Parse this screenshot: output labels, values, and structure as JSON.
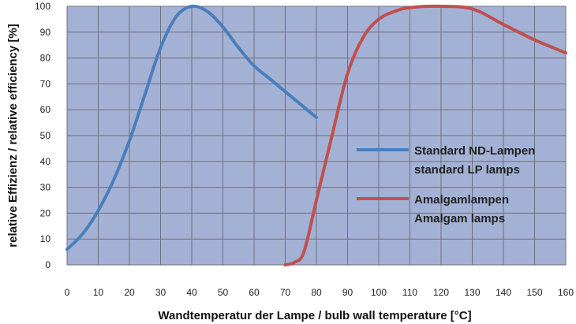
{
  "chart_data": {
    "type": "line",
    "xlabel": "Wandtemperatur der Lampe / bulb wall temperature [°C]",
    "ylabel": "relative Effizienz / relative efficiency [%]",
    "xlim": [
      0,
      160
    ],
    "ylim": [
      0,
      100
    ],
    "xticks": [
      0,
      10,
      20,
      30,
      40,
      50,
      60,
      70,
      80,
      90,
      100,
      110,
      120,
      130,
      140,
      150,
      160
    ],
    "yticks": [
      0,
      10,
      20,
      30,
      40,
      50,
      60,
      70,
      80,
      90,
      100
    ],
    "grid": true,
    "legend_position": "right",
    "series": [
      {
        "name": "Standard ND-Lampen",
        "name_line2": "standard LP lamps",
        "color": "#4a7ebb",
        "x": [
          0,
          5,
          10,
          15,
          20,
          25,
          30,
          35,
          40,
          45,
          50,
          55,
          60,
          65,
          70,
          75,
          80
        ],
        "y": [
          6,
          12,
          21,
          33,
          48,
          66,
          84,
          96,
          100,
          98,
          92,
          84,
          77,
          72,
          67,
          62,
          57
        ]
      },
      {
        "name": "Amalgamlampen",
        "name_line2": "Amalgam lamps",
        "color": "#c0504d",
        "x": [
          70,
          73,
          76,
          80,
          85,
          90,
          95,
          100,
          105,
          110,
          120,
          130,
          140,
          150,
          160
        ],
        "y": [
          0,
          1,
          5,
          25,
          50,
          74,
          88,
          95,
          98,
          99.5,
          100,
          99,
          93,
          87,
          82
        ]
      }
    ]
  }
}
